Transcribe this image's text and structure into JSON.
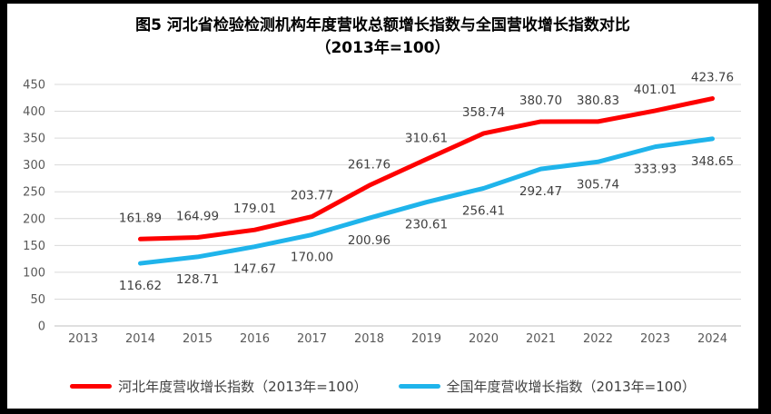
{
  "figure": {
    "title_line1": "图5  河北省检验检测机构年度营收总额增长指数与全国营收增长指数对比",
    "title_line2": "（2013年=100）"
  },
  "chart_data": {
    "type": "line",
    "categories": [
      "2013",
      "2014",
      "2015",
      "2016",
      "2017",
      "2018",
      "2019",
      "2020",
      "2021",
      "2022",
      "2023",
      "2024"
    ],
    "series": [
      {
        "name": "河北年度营收增长指数（2013年=100）",
        "color": "#fe0000",
        "label_position": "above",
        "values": [
          null,
          161.89,
          164.99,
          179.01,
          203.77,
          261.76,
          310.61,
          358.74,
          380.7,
          380.83,
          401.01,
          423.76
        ]
      },
      {
        "name": "全国年度营收增长指数（2013年=100）",
        "color": "#1fb4eb",
        "label_position": "below",
        "values": [
          null,
          116.62,
          128.71,
          147.67,
          170.0,
          200.96,
          230.61,
          256.41,
          292.47,
          305.74,
          333.93,
          348.65
        ]
      }
    ],
    "ylim": [
      0,
      450
    ],
    "y_tick_step": 50,
    "grid": true,
    "legend_position": "bottom",
    "label_decimals": 2,
    "colors": {
      "gridline": "#d9d9d9",
      "axis_line": "#bfbfbf",
      "tick_label": "#595959",
      "data_label": "#404040"
    }
  }
}
